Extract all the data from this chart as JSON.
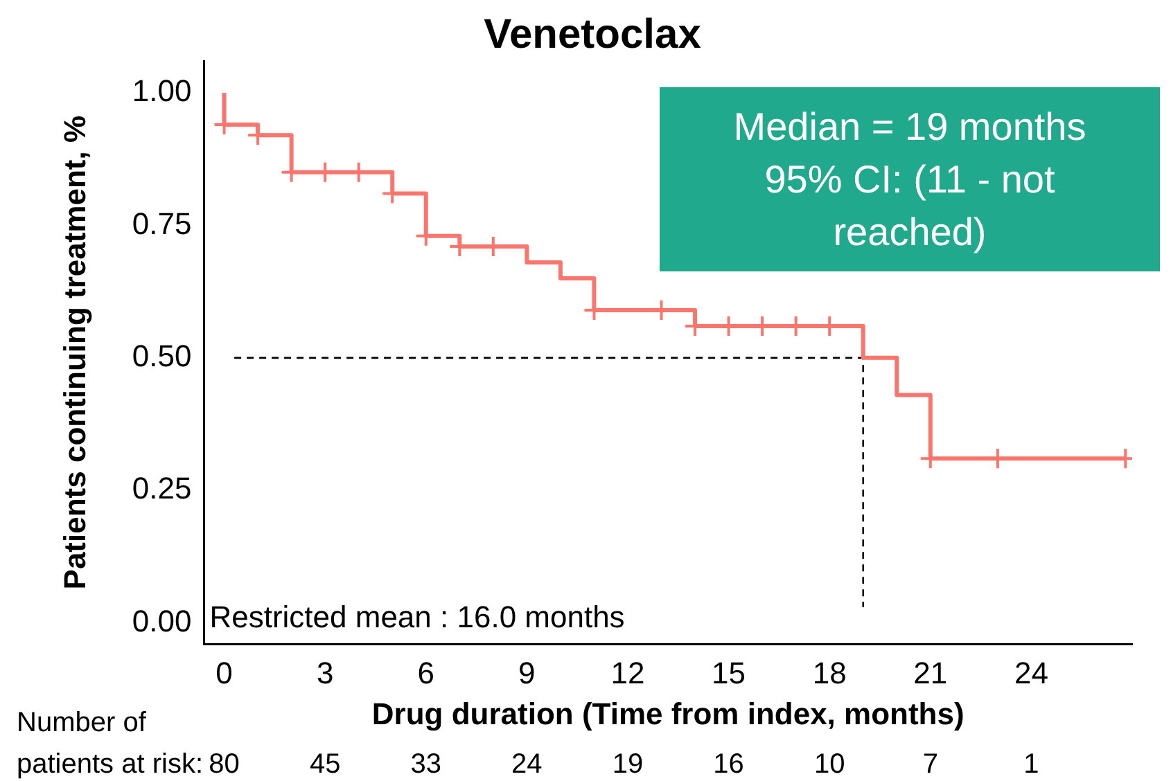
{
  "chart_data": {
    "type": "step",
    "title": "Venetoclax",
    "xlabel": "Drug duration (Time from index, months)",
    "ylabel": "Patients continuing treatment, %",
    "xlim": [
      -0.6,
      27
    ],
    "xticks": [
      0,
      3,
      6,
      9,
      12,
      15,
      18,
      21,
      24
    ],
    "ylim": [
      -0.04,
      1.06
    ],
    "yticks": [
      {
        "value": 0,
        "label": "0.00"
      },
      {
        "value": 0.25,
        "label": "0.25"
      },
      {
        "value": 0.5,
        "label": "0.50"
      },
      {
        "value": 0.75,
        "label": "0.75"
      },
      {
        "value": 1,
        "label": "1.00"
      }
    ],
    "grid": false,
    "legend": false,
    "series": [
      {
        "color": "#f8766d",
        "x": [
          0,
          0,
          1,
          2,
          5,
          6,
          7,
          9,
          10,
          11,
          14,
          19,
          20,
          21,
          26.8
        ],
        "values": [
          1.0,
          0.94,
          0.92,
          0.85,
          0.81,
          0.73,
          0.71,
          0.68,
          0.65,
          0.59,
          0.56,
          0.5,
          0.43,
          0.31,
          0.31
        ]
      },
      {
        "type": "scatter",
        "marker": "cross",
        "color": "#f8766d",
        "x": [
          0,
          1,
          2,
          3,
          4,
          5,
          6,
          7,
          8,
          11,
          13,
          14,
          15,
          16,
          17,
          18,
          21,
          23,
          26.8
        ],
        "values": [
          0.94,
          0.92,
          0.85,
          0.85,
          0.85,
          0.81,
          0.73,
          0.71,
          0.71,
          0.59,
          0.59,
          0.56,
          0.56,
          0.56,
          0.56,
          0.56,
          0.31,
          0.31,
          0.31
        ]
      },
      {
        "type": "line",
        "line_style": "dashed",
        "color": "#000000",
        "x": [
          0.3,
          19,
          19
        ],
        "values": [
          0.5,
          0.5,
          0.03
        ]
      }
    ],
    "annotations": [
      "Median = 19 months\n95% CI: (11 - not reached)",
      "Restricted mean : 16.0 months",
      "Number of\npatients at risk:",
      "80",
      "45",
      "33",
      "24",
      "19",
      "16",
      "10",
      "7",
      "1"
    ]
  }
}
